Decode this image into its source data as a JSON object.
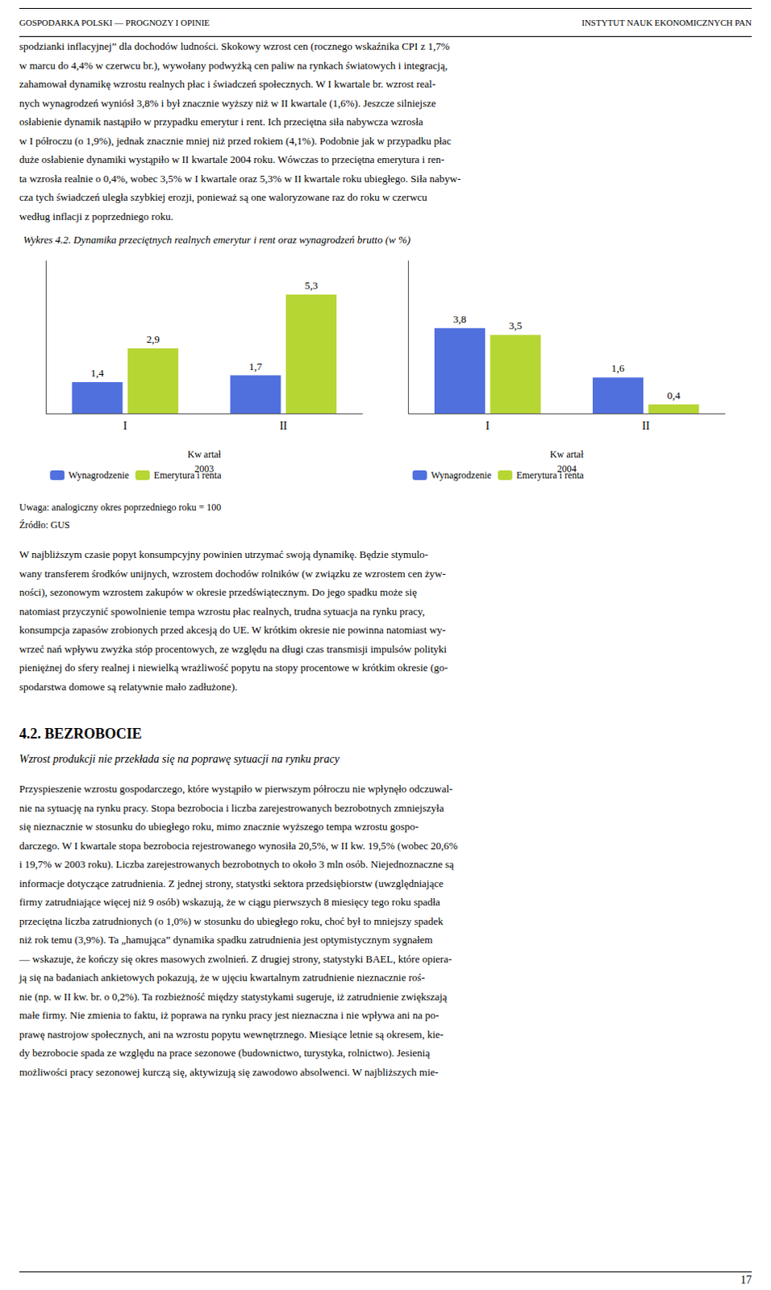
{
  "header": [
    "GOSPODARKA POLSKI — PROGNOZY I OPINIE",
    "INSTYTUT NAUK EKONOMICZNYCH PAN"
  ],
  "body_before": [
    "spodzianki inflacyjnej” dla dochodów ludności. Skokowy wzrost cen (rocznego wskaźnika CPI z 1,7%",
    "w marcu do 4,4% w czerwcu br.), wywołany podwyżką cen paliw na rynkach światowych i integracją,",
    "zahamował dynamikę wzrostu realnych płac i świadczeń społecznych. W I kwartale br. wzrost real-",
    "nych wynagrodzeń wyniósł 3,8% i był znacznie wyższy niż w II kwartale (1,6%). Jeszcze silniejsze",
    "osłabienie dynamik nastąpiło w przypadku emerytur i rent. Ich przeciętna siła nabywcza wzrosła",
    "w I półroczu (o 1,9%), jednak znacznie mniej niż przed rokiem (4,1%). Podobnie jak w przypadku płac",
    "duże osłabienie dynamiki wystąpiło w II kwartale 2004 roku. Wówczas to przeciętna emerytura i ren-",
    "ta wzrosła realnie o 0,4%, wobec 3,5% w I kwartale oraz 5,3% w II kwartale roku ubiegłego. Siła nabyw-",
    "cza tych świadczeń uległa szybkiej erozji, ponieważ są one waloryzowane raz do roku w czerwcu",
    "według inflacji z poprzedniego roku."
  ],
  "title": "Wykres 4.2. Dynamika przeciętnych realnych emerytur i rent oraz wynagrodzeń brutto (w %)",
  "chart_data": [
    {
      "type": "bar",
      "title": "2003",
      "xlabel": "Kw artał",
      "categories": [
        "I",
        "II"
      ],
      "series": [
        {
          "name": "Wynagrodzenie",
          "values": [
            1.4,
            1.7
          ],
          "value_labels": [
            "1,4",
            "1,7"
          ]
        },
        {
          "name": "Emerytura i renta",
          "values": [
            2.9,
            5.3
          ],
          "value_labels": [
            "2,9",
            "5,3"
          ]
        }
      ],
      "ylim": [
        0,
        6.8
      ],
      "yticks": [],
      "tick_labels": "x",
      "data_labels": true,
      "grid": false
    },
    {
      "type": "bar",
      "title": "2004",
      "xlabel": "Kw artał",
      "categories": [
        "I",
        "II"
      ],
      "series": [
        {
          "name": "Wynagrodzenie",
          "values": [
            3.8,
            1.6
          ],
          "value_labels": [
            "3,8",
            "1,6"
          ]
        },
        {
          "name": "Emerytura i renta",
          "values": [
            3.5,
            0.4
          ],
          "value_labels": [
            "3,5",
            "0,4"
          ]
        }
      ],
      "ylim": [
        0,
        6.8
      ],
      "yticks": [],
      "tick_labels": "x",
      "data_labels": true,
      "grid": false
    }
  ],
  "notes": [
    "Uwaga: analogiczny okres poprzedniego roku = 100",
    "Źródło: GUS"
  ],
  "body_between": [
    "   W najbliższym czasie popyt konsumpcyjny powinien utrzymać swoją dynamikę. Będzie stymulo-",
    "wany transferem środków unijnych, wzrostem dochodów rolników (w związku ze wzrostem cen żyw-",
    "ności), sezonowym wzrostem zakupów w okresie przedświątecznym. Do jego spadku może się",
    "natomiast przyczynić spowolnienie tempa wzrostu płac realnych, trudna sytuacja na rynku pracy,",
    "konsumpcja zapasów zrobionych przed akcesją do UE. W krótkim okresie nie powinna natomiast wy-",
    "wrzeć nań wpływu zwyżka stóp procentowych, ze względu na długi czas transmisji impulsów polityki",
    "pieniężnej do sfery realnej i niewielką wrażliwość popytu na stopy procentowe w krótkim okresie (go-",
    "spodarstwa domowe są relatywnie mało zadłużone)."
  ],
  "section_title": "4.2. BEZROBOCIE",
  "section_subtitle": "Wzrost produkcji nie przekłada się na poprawę sytuacji na rynku pracy",
  "body_after": [
    "Przyspieszenie wzrostu gospodarczego, które wystąpiło w pierwszym półroczu nie wpłynęło odczuwal-",
    "nie na sytuację na rynku pracy. Stopa bezrobocia i liczba zarejestrowanych bezrobotnych zmniejszyła",
    "się nieznacznie w stosunku do ubiegłego roku, mimo znacznie wyższego tempa wzrostu gospo-",
    "darczego. W I kwartale stopa bezrobocia rejestrowanego wynosiła 20,5%, w II kw. 19,5% (wobec 20,6%",
    "i 19,7% w 2003 roku). Liczba zarejestrowanych bezrobotnych to około 3 mln osób. Niejednoznaczne są",
    "informacje dotyczące zatrudnienia. Z jednej strony, statystki sektora przedsiębiorstw (uwzględniające",
    "firmy zatrudniające więcej niż 9 osób) wskazują, że w ciągu pierwszych 8 miesięcy tego roku spadła",
    "przeciętna liczba zatrudnionych (o 1,0%) w stosunku do ubiegłego roku, choć był to mniejszy spadek",
    "niż rok temu (3,9%). Ta „hamująca” dynamika spadku zatrudnienia jest optymistycznym sygnałem",
    "— wskazuje, że kończy się okres masowych zwolnień. Z drugiej strony, statystyki BAEL, które opiera-",
    "ją się na badaniach ankietowych pokazują, że w ujęciu kwartalnym zatrudnienie nieznacznie roś-",
    "nie (np. w II kw. br. o 0,2%). Ta rozbieżność między statystykami sugeruje, iż zatrudnienie zwiększają",
    "małe firmy. Nie zmienia to faktu, iż poprawa na rynku pracy jest nieznaczna i nie wpływa ani na po-",
    "prawę nastrojow społecznych, ani na wzrostu popytu wewnętrznego. Miesiące letnie są okresem, kie-",
    "dy bezrobocie spada ze względu na prace sezonowe (budownictwo, turystyka, rolnictwo). Jesienią",
    "możliwości pracy sezonowej kurczą się, aktywizują się zawodowo absolwenci. W najbliższych mie-"
  ],
  "page_number": "17"
}
